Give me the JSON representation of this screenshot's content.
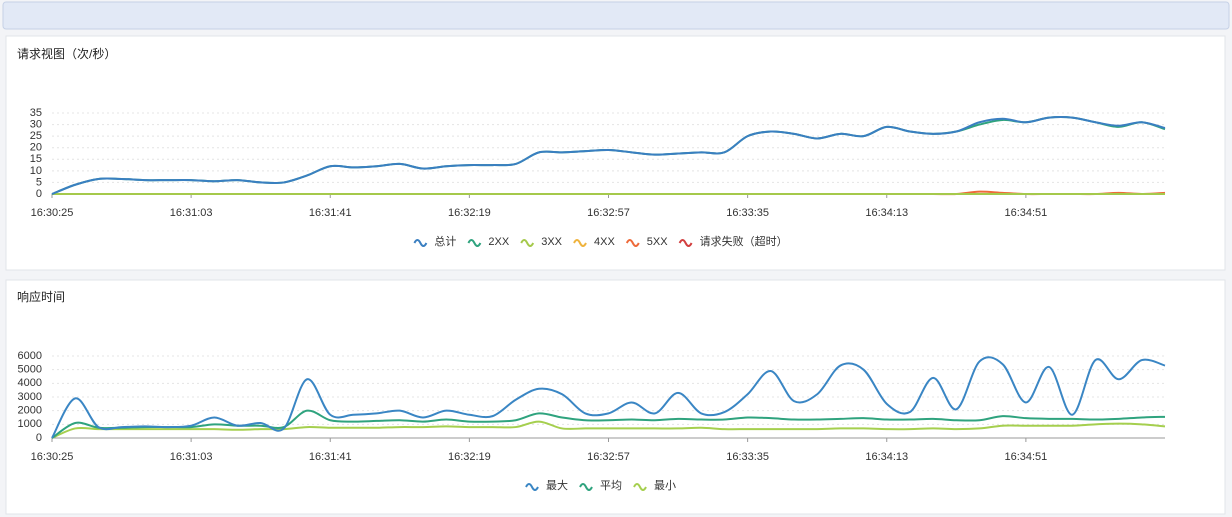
{
  "chart_data": [
    {
      "type": "line",
      "title": "请求视图（次/秒）",
      "categories": [
        "16:30:25",
        null,
        null,
        null,
        null,
        null,
        "16:31:03",
        null,
        null,
        null,
        null,
        null,
        "16:31:41",
        null,
        null,
        null,
        null,
        null,
        "16:32:19",
        null,
        null,
        null,
        null,
        null,
        "16:32:57",
        null,
        null,
        null,
        null,
        null,
        "16:33:35",
        null,
        null,
        null,
        null,
        null,
        "16:34:13",
        null,
        null,
        null,
        null,
        null,
        "16:34:51",
        null,
        null,
        null,
        null,
        null,
        null
      ],
      "ylim": [
        0,
        35
      ],
      "yticks": [
        0,
        5,
        10,
        15,
        20,
        25,
        30,
        35
      ],
      "grid": true,
      "legend": "bottom",
      "series": [
        {
          "name": "总计",
          "color": "#3a7fc1",
          "values": [
            0,
            4,
            6.5,
            6.5,
            6,
            6,
            6,
            5.5,
            6,
            5,
            5,
            8,
            12,
            11.5,
            12,
            13,
            11,
            12,
            12.5,
            12.5,
            13,
            18,
            18,
            18.5,
            19,
            18,
            17,
            17.5,
            18,
            18,
            25,
            27,
            26,
            24,
            26,
            25,
            29,
            27,
            26,
            27,
            31,
            32.5,
            31,
            33,
            33,
            31,
            29.5,
            31,
            28.5
          ]
        },
        {
          "name": "2XX",
          "color": "#2fa37e",
          "values": [
            0,
            4,
            6.5,
            6.5,
            6,
            6,
            6,
            5.5,
            6,
            5,
            5,
            8,
            12,
            11.5,
            12,
            13,
            11,
            12,
            12.5,
            12.5,
            13,
            18,
            18,
            18.5,
            19,
            18,
            17,
            17.5,
            18,
            18,
            25,
            27,
            26,
            24,
            26,
            25,
            29,
            27,
            26,
            27,
            30,
            32,
            31,
            33,
            33,
            31,
            29,
            31,
            28
          ]
        },
        {
          "name": "3XX",
          "color": "#a5c94b",
          "values": [
            0,
            0,
            0,
            0,
            0,
            0,
            0,
            0,
            0,
            0,
            0,
            0,
            0,
            0,
            0,
            0,
            0,
            0,
            0,
            0,
            0,
            0,
            0,
            0,
            0,
            0,
            0,
            0,
            0,
            0,
            0,
            0,
            0,
            0,
            0,
            0,
            0,
            0,
            0,
            0,
            0,
            0,
            0,
            0,
            0,
            0,
            0,
            0,
            0
          ]
        },
        {
          "name": "4XX",
          "color": "#efb33d",
          "values": [
            0,
            0,
            0,
            0,
            0,
            0,
            0,
            0,
            0,
            0,
            0,
            0,
            0,
            0,
            0,
            0,
            0,
            0,
            0,
            0,
            0,
            0,
            0,
            0,
            0,
            0,
            0,
            0,
            0,
            0,
            0,
            0,
            0,
            0,
            0,
            0,
            0,
            0,
            0,
            0,
            0,
            0,
            0,
            0,
            0,
            0,
            0,
            0,
            0
          ]
        },
        {
          "name": "5XX",
          "color": "#ee6a3a",
          "values": [
            0,
            0,
            0,
            0,
            0,
            0,
            0,
            0,
            0,
            0,
            0,
            0,
            0,
            0,
            0,
            0,
            0,
            0,
            0,
            0,
            0,
            0,
            0,
            0,
            0,
            0,
            0,
            0,
            0,
            0,
            0,
            0,
            0,
            0,
            0,
            0,
            0,
            0,
            0,
            0,
            1,
            0.5,
            0,
            0,
            0,
            0,
            0.5,
            0,
            0.5
          ]
        },
        {
          "name": "请求失败（超时）",
          "color": "#d23f3f",
          "values": [
            0,
            0,
            0,
            0,
            0,
            0,
            0,
            0,
            0,
            0,
            0,
            0,
            0,
            0,
            0,
            0,
            0,
            0,
            0,
            0,
            0,
            0,
            0,
            0,
            0,
            0,
            0,
            0,
            0,
            0,
            0,
            0,
            0,
            0,
            0,
            0,
            0,
            0,
            0,
            0,
            0,
            0,
            0,
            0,
            0,
            0,
            0,
            0,
            0
          ]
        }
      ]
    },
    {
      "type": "line",
      "title": "响应时间",
      "categories": [
        "16:30:25",
        null,
        null,
        null,
        null,
        null,
        "16:31:03",
        null,
        null,
        null,
        null,
        null,
        "16:31:41",
        null,
        null,
        null,
        null,
        null,
        "16:32:19",
        null,
        null,
        null,
        null,
        null,
        "16:32:57",
        null,
        null,
        null,
        null,
        null,
        "16:33:35",
        null,
        null,
        null,
        null,
        null,
        "16:34:13",
        null,
        null,
        null,
        null,
        null,
        "16:34:51",
        null,
        null,
        null,
        null,
        null,
        null
      ],
      "ylim": [
        0,
        6000
      ],
      "yticks": [
        0,
        1000,
        2000,
        3000,
        4000,
        5000,
        6000
      ],
      "grid": true,
      "legend": "bottom",
      "series": [
        {
          "name": "最大",
          "color": "#3a86c4",
          "values": [
            0,
            2900,
            800,
            800,
            850,
            800,
            900,
            1500,
            900,
            1100,
            700,
            4300,
            1700,
            1700,
            1800,
            2000,
            1500,
            2000,
            1700,
            1600,
            2800,
            3600,
            3200,
            1800,
            1800,
            2600,
            1800,
            3300,
            1800,
            1900,
            3200,
            4900,
            2700,
            3200,
            5300,
            5000,
            2500,
            1900,
            4400,
            2100,
            5600,
            5400,
            2600,
            5200,
            1700,
            5700,
            4300,
            5700,
            5300
          ]
        },
        {
          "name": "平均",
          "color": "#2fa37e",
          "values": [
            0,
            1100,
            750,
            750,
            800,
            800,
            800,
            1000,
            900,
            900,
            800,
            2000,
            1300,
            1200,
            1250,
            1300,
            1200,
            1350,
            1200,
            1200,
            1300,
            1800,
            1500,
            1300,
            1300,
            1350,
            1300,
            1400,
            1350,
            1350,
            1500,
            1450,
            1350,
            1350,
            1400,
            1450,
            1350,
            1350,
            1400,
            1300,
            1300,
            1600,
            1450,
            1400,
            1400,
            1350,
            1400,
            1500,
            1550
          ]
        },
        {
          "name": "最小",
          "color": "#a5cf4e",
          "values": [
            0,
            700,
            650,
            650,
            650,
            650,
            650,
            650,
            600,
            650,
            650,
            800,
            750,
            750,
            750,
            800,
            800,
            850,
            800,
            800,
            800,
            1200,
            700,
            700,
            700,
            700,
            700,
            700,
            750,
            650,
            650,
            650,
            650,
            650,
            700,
            700,
            650,
            650,
            700,
            650,
            700,
            900,
            900,
            900,
            900,
            1000,
            1050,
            1000,
            850
          ]
        }
      ]
    }
  ]
}
